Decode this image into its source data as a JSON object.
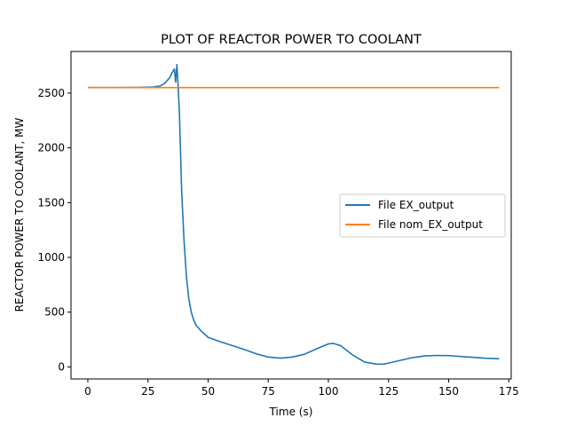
{
  "chart_data": {
    "type": "line",
    "title": "PLOT OF REACTOR POWER TO COOLANT",
    "xlabel": "Time (s)",
    "ylabel": "REACTOR POWER TO COOLANT, MW",
    "xlim": [
      -7,
      176
    ],
    "ylim": [
      -110,
      2880
    ],
    "xticks": [
      0,
      25,
      50,
      75,
      100,
      125,
      150,
      175
    ],
    "yticks": [
      0,
      500,
      1000,
      1500,
      2000,
      2500
    ],
    "grid": false,
    "legend_position": "center-right",
    "series": [
      {
        "name": "File EX_output",
        "color": "#1f77b4",
        "x": [
          0,
          10,
          20,
          27,
          30,
          32,
          34,
          35,
          36,
          36.5,
          37,
          37.5,
          38,
          38.5,
          39,
          40,
          41,
          42,
          43,
          44,
          45,
          47,
          50,
          55,
          60,
          65,
          70,
          75,
          80,
          85,
          90,
          95,
          100,
          102,
          105,
          110,
          115,
          120,
          123,
          125,
          130,
          135,
          140,
          145,
          150,
          155,
          160,
          165,
          171
        ],
        "y": [
          2550,
          2550,
          2552,
          2556,
          2565,
          2590,
          2640,
          2685,
          2720,
          2600,
          2760,
          2580,
          2350,
          2000,
          1600,
          1150,
          820,
          620,
          500,
          430,
          380,
          330,
          270,
          230,
          195,
          160,
          120,
          90,
          80,
          90,
          115,
          165,
          210,
          215,
          195,
          110,
          45,
          25,
          25,
          35,
          60,
          85,
          100,
          105,
          103,
          95,
          88,
          80,
          75
        ]
      },
      {
        "name": "File nom_EX_output",
        "color": "#ff7f0e",
        "x": [
          0,
          171
        ],
        "y": [
          2550,
          2550
        ]
      }
    ]
  }
}
